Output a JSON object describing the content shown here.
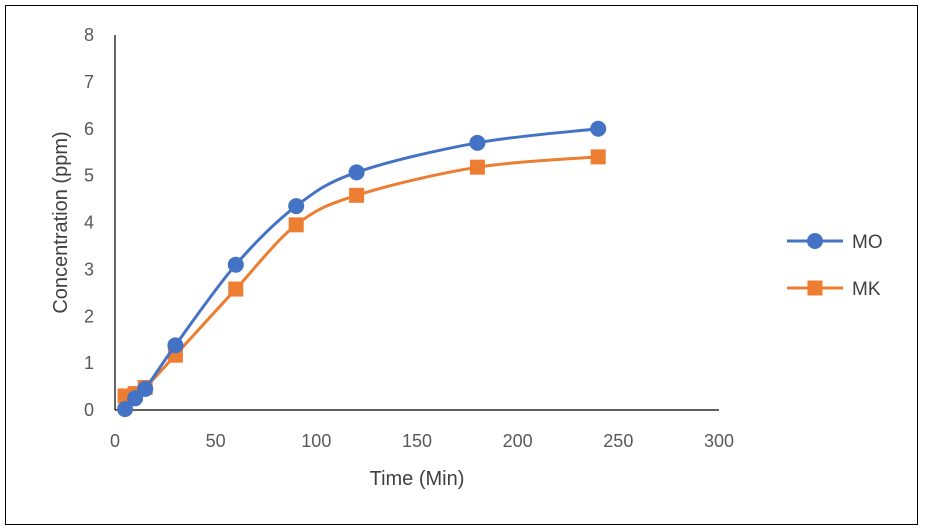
{
  "chart_data": {
    "type": "line",
    "title": "",
    "xlabel": "Time (Min)",
    "ylabel": "Concentration (ppm)",
    "xlim": [
      0,
      300
    ],
    "ylim": [
      0,
      8
    ],
    "x_ticks": [
      0,
      50,
      100,
      150,
      200,
      250,
      300
    ],
    "y_ticks": [
      0,
      1,
      2,
      3,
      4,
      5,
      6,
      7,
      8
    ],
    "grid": false,
    "smooth": true,
    "legend_position": "right",
    "series": [
      {
        "name": "MO",
        "color": "#4472C4",
        "marker": "circle",
        "x": [
          5,
          10,
          15,
          30,
          60,
          90,
          120,
          180,
          240
        ],
        "y": [
          0.02,
          0.25,
          0.45,
          1.38,
          3.1,
          4.35,
          5.07,
          5.7,
          6.0
        ]
      },
      {
        "name": "MK",
        "color": "#ED7D31",
        "marker": "square",
        "x": [
          5,
          10,
          15,
          30,
          60,
          90,
          120,
          180,
          240
        ],
        "y": [
          0.3,
          0.35,
          0.48,
          1.17,
          2.58,
          3.95,
          4.58,
          5.18,
          5.4
        ]
      }
    ]
  }
}
